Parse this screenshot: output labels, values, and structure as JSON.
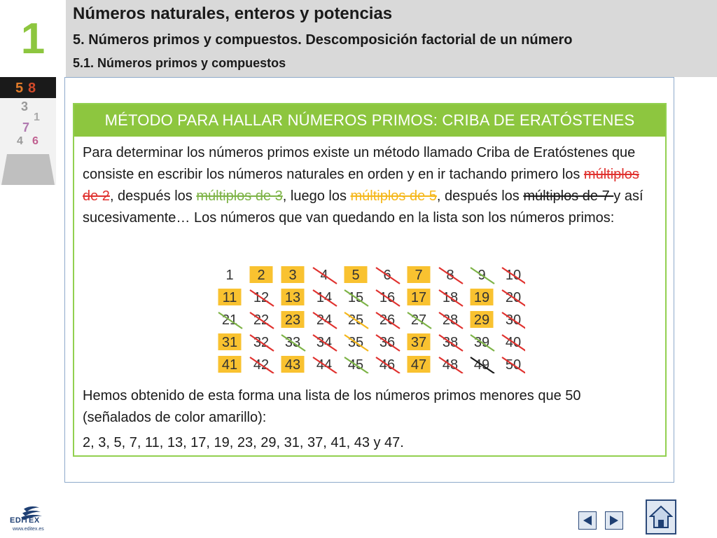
{
  "header": {
    "unit_number": "1",
    "title": "Números naturales, enteros y potencias",
    "subtitle": "5. Números primos y compuestos. Descomposición factorial de un número",
    "section": "5.1. Números primos y compuestos"
  },
  "card": {
    "heading": "MÉTODO PARA HALLAR NÚMEROS PRIMOS: CRIBA DE ERATÓSTENES",
    "intro_part1": "Para determinar los números primos existe un método llamado Criba de Eratóstenes que consiste en escribir los números naturales en orden y en ir tachando primero los ",
    "mult2": "múltiplos de 2",
    "intro_part2": ", después los ",
    "mult3": "múltiplos de 3",
    "intro_part3": ", luego los ",
    "mult5": "múltiplos de 5",
    "intro_part4": ", después los ",
    "mult7": "múltiplos de 7 ",
    "intro_part5": "y así sucesivamente… Los números que van quedando en la lista son los números primos:",
    "result_text": "Hemos obtenido de esta forma una lista de los números primos menores que 50 (señalados de color amarillo):",
    "prime_list": "2, 3, 5, 7, 11, 13, 17, 19, 23, 29, 31, 37, 41, 43 y 47."
  },
  "sieve": {
    "numbers": [
      1,
      2,
      3,
      4,
      5,
      6,
      7,
      8,
      9,
      10,
      11,
      12,
      13,
      14,
      15,
      16,
      17,
      18,
      19,
      20,
      21,
      22,
      23,
      24,
      25,
      26,
      27,
      28,
      29,
      30,
      31,
      32,
      33,
      34,
      35,
      36,
      37,
      38,
      39,
      40,
      41,
      42,
      43,
      44,
      45,
      46,
      47,
      48,
      49,
      50
    ],
    "primes": [
      2,
      3,
      5,
      7,
      11,
      13,
      17,
      19,
      23,
      29,
      31,
      37,
      41,
      43,
      47
    ],
    "colors": {
      "prime_bg": "#f9c230",
      "mult2": "#e0312e",
      "mult3": "#7db346",
      "mult5": "#f5b71a",
      "mult7": "#1a1a1a"
    }
  },
  "footer": {
    "logo_name": "EDITEX",
    "logo_url": "www.editex.es",
    "prev_icon": "triangle-left-icon",
    "next_icon": "triangle-right-icon",
    "home_icon": "home-icon"
  },
  "colors": {
    "accent_green": "#8dc63f",
    "header_gray": "#d9d9d9",
    "frame_border": "#8eaacb"
  }
}
